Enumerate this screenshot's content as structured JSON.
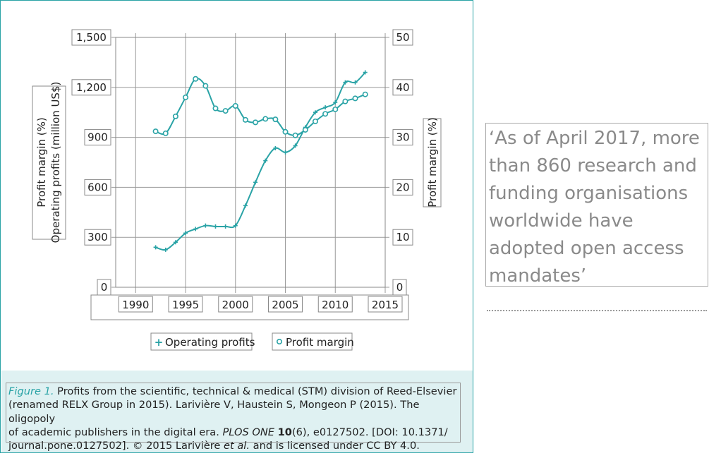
{
  "chart_data": {
    "type": "line",
    "x_ticks": [
      "1990",
      "1995",
      "2000",
      "2005",
      "2010",
      "2015"
    ],
    "xlim": [
      1988,
      2015
    ],
    "left_axis": {
      "label_line1": "Profit margin (%)",
      "label_line2": "Operating profits (million US$)",
      "ticks": [
        "0",
        "300",
        "600",
        "900",
        "1,200",
        "1,500"
      ],
      "ylim": [
        0,
        1500
      ]
    },
    "right_axis": {
      "label": "Profit margin (%)",
      "ticks": [
        "0",
        "10",
        "20",
        "30",
        "40",
        "50"
      ],
      "ylim": [
        0,
        50
      ]
    },
    "grid": true,
    "series": [
      {
        "name": "Operating profits",
        "axis": "left",
        "marker": "plus",
        "color": "#2aa3a6",
        "x": [
          1992,
          1993,
          1994,
          1995,
          1996,
          1997,
          1998,
          1999,
          2000,
          2001,
          2002,
          2003,
          2004,
          2005,
          2006,
          2007,
          2008,
          2009,
          2010,
          2011,
          2012,
          2013
        ],
        "y": [
          240,
          225,
          270,
          325,
          350,
          370,
          365,
          365,
          370,
          490,
          630,
          760,
          835,
          810,
          850,
          960,
          1050,
          1080,
          1110,
          1230,
          1230,
          1290
        ]
      },
      {
        "name": "Profit margin",
        "axis": "right",
        "marker": "circle",
        "color": "#2aa3a6",
        "x": [
          1992,
          1993,
          1994,
          1995,
          1996,
          1997,
          1998,
          1999,
          2000,
          2001,
          2002,
          2003,
          2004,
          2005,
          2006,
          2007,
          2008,
          2009,
          2010,
          2011,
          2012,
          2013
        ],
        "y": [
          31.2,
          30.8,
          34.2,
          38.0,
          41.7,
          40.3,
          35.8,
          35.3,
          36.3,
          33.5,
          33.0,
          33.7,
          33.6,
          31.1,
          30.4,
          31.5,
          33.2,
          34.7,
          35.6,
          37.2,
          37.8,
          38.6
        ]
      }
    ],
    "legend": {
      "position": "bottom",
      "items": [
        {
          "symbol": "+",
          "label": "Operating profits"
        },
        {
          "symbol": "o",
          "label": "Profit margin"
        }
      ]
    }
  },
  "caption": {
    "label": "Figure 1.",
    "line1": "Profits from the scientific, technical & medical (STM) division of Reed-Elsevier",
    "line2": "(renamed RELX Group in 2015). Larivière V, Haustein S, Mongeon P (2015). The oligopoly",
    "line3_pre": "of academic publishers in the digital era. ",
    "line3_journal": "PLOS ONE",
    "line3_volume": "10",
    "line3_post": "(6), e0127502. [DOI: 10.1371/",
    "line4_pre": "journal.pone.0127502]. © 2015 Larivière ",
    "line4_etal": "et al.",
    "line4_post": " and is licensed under CC BY 4.0."
  },
  "quote": {
    "line1": "‘As of April 2017, more",
    "line2": "than 860 research and",
    "line3": "funding organisations",
    "line4": "worldwide have",
    "line5": "adopted open access",
    "line6": "mandates’"
  },
  "colors": {
    "accent": "#2aa3a6",
    "caption_background": "#dff1f2",
    "quote_text": "#8a8a8a"
  }
}
